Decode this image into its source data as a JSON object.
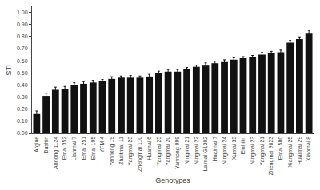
{
  "chart_data": {
    "type": "bar",
    "xlabel": "Genotypes",
    "ylabel": "STI",
    "categories": [
      "Argine",
      "Bushin",
      "Annong 1124",
      "Emai 352",
      "Lianmai 7",
      "Emai 251",
      "Emai 195",
      "YFM 4",
      "Yannong 19",
      "Zhaitmai 11",
      "Yangmai 23",
      "Zhengmai 110",
      "Huamai 6",
      "Yangmai 25",
      "Yangmai 20",
      "Yannong 999",
      "Ningmai 21",
      "Ningmai 22",
      "Laimai G1302",
      "Huaimai 7",
      "Ningmai 24",
      "Xumai 33",
      "Einhilin",
      "Ningmai 23",
      "Yangmai 21",
      "Zhengmai 9023",
      "Emai 580",
      "Xiangmai 25",
      "Huaimai 29",
      "Xiaomai 8"
    ],
    "values": [
      0.16,
      0.31,
      0.36,
      0.37,
      0.4,
      0.41,
      0.42,
      0.43,
      0.45,
      0.46,
      0.46,
      0.46,
      0.47,
      0.5,
      0.51,
      0.51,
      0.53,
      0.55,
      0.56,
      0.58,
      0.59,
      0.61,
      0.62,
      0.63,
      0.65,
      0.66,
      0.67,
      0.75,
      0.78,
      0.83
    ],
    "errors": [
      0.025,
      0.022,
      0.022,
      0.018,
      0.018,
      0.018,
      0.018,
      0.015,
      0.018,
      0.014,
      0.018,
      0.014,
      0.018,
      0.014,
      0.018,
      0.018,
      0.014,
      0.014,
      0.022,
      0.018,
      0.018,
      0.014,
      0.014,
      0.014,
      0.018,
      0.018,
      0.018,
      0.018,
      0.018,
      0.022
    ],
    "color": "#111111",
    "ylim": [
      0.0,
      1.05
    ],
    "yticks": [
      {
        "value": 0.0,
        "label": "0.00"
      },
      {
        "value": 0.1,
        "label": "0.10"
      },
      {
        "value": 0.2,
        "label": "0.20"
      },
      {
        "value": 0.3,
        "label": "0.30"
      },
      {
        "value": 0.4,
        "label": "0.40"
      },
      {
        "value": 0.5,
        "label": "0.50"
      },
      {
        "value": 0.6,
        "label": "0.60"
      },
      {
        "value": 0.7,
        "label": "0.70"
      },
      {
        "value": 0.8,
        "label": "0.80"
      },
      {
        "value": 0.9,
        "label": "0.90"
      },
      {
        "value": 1.0,
        "label": "1.00"
      }
    ],
    "grid": false
  }
}
